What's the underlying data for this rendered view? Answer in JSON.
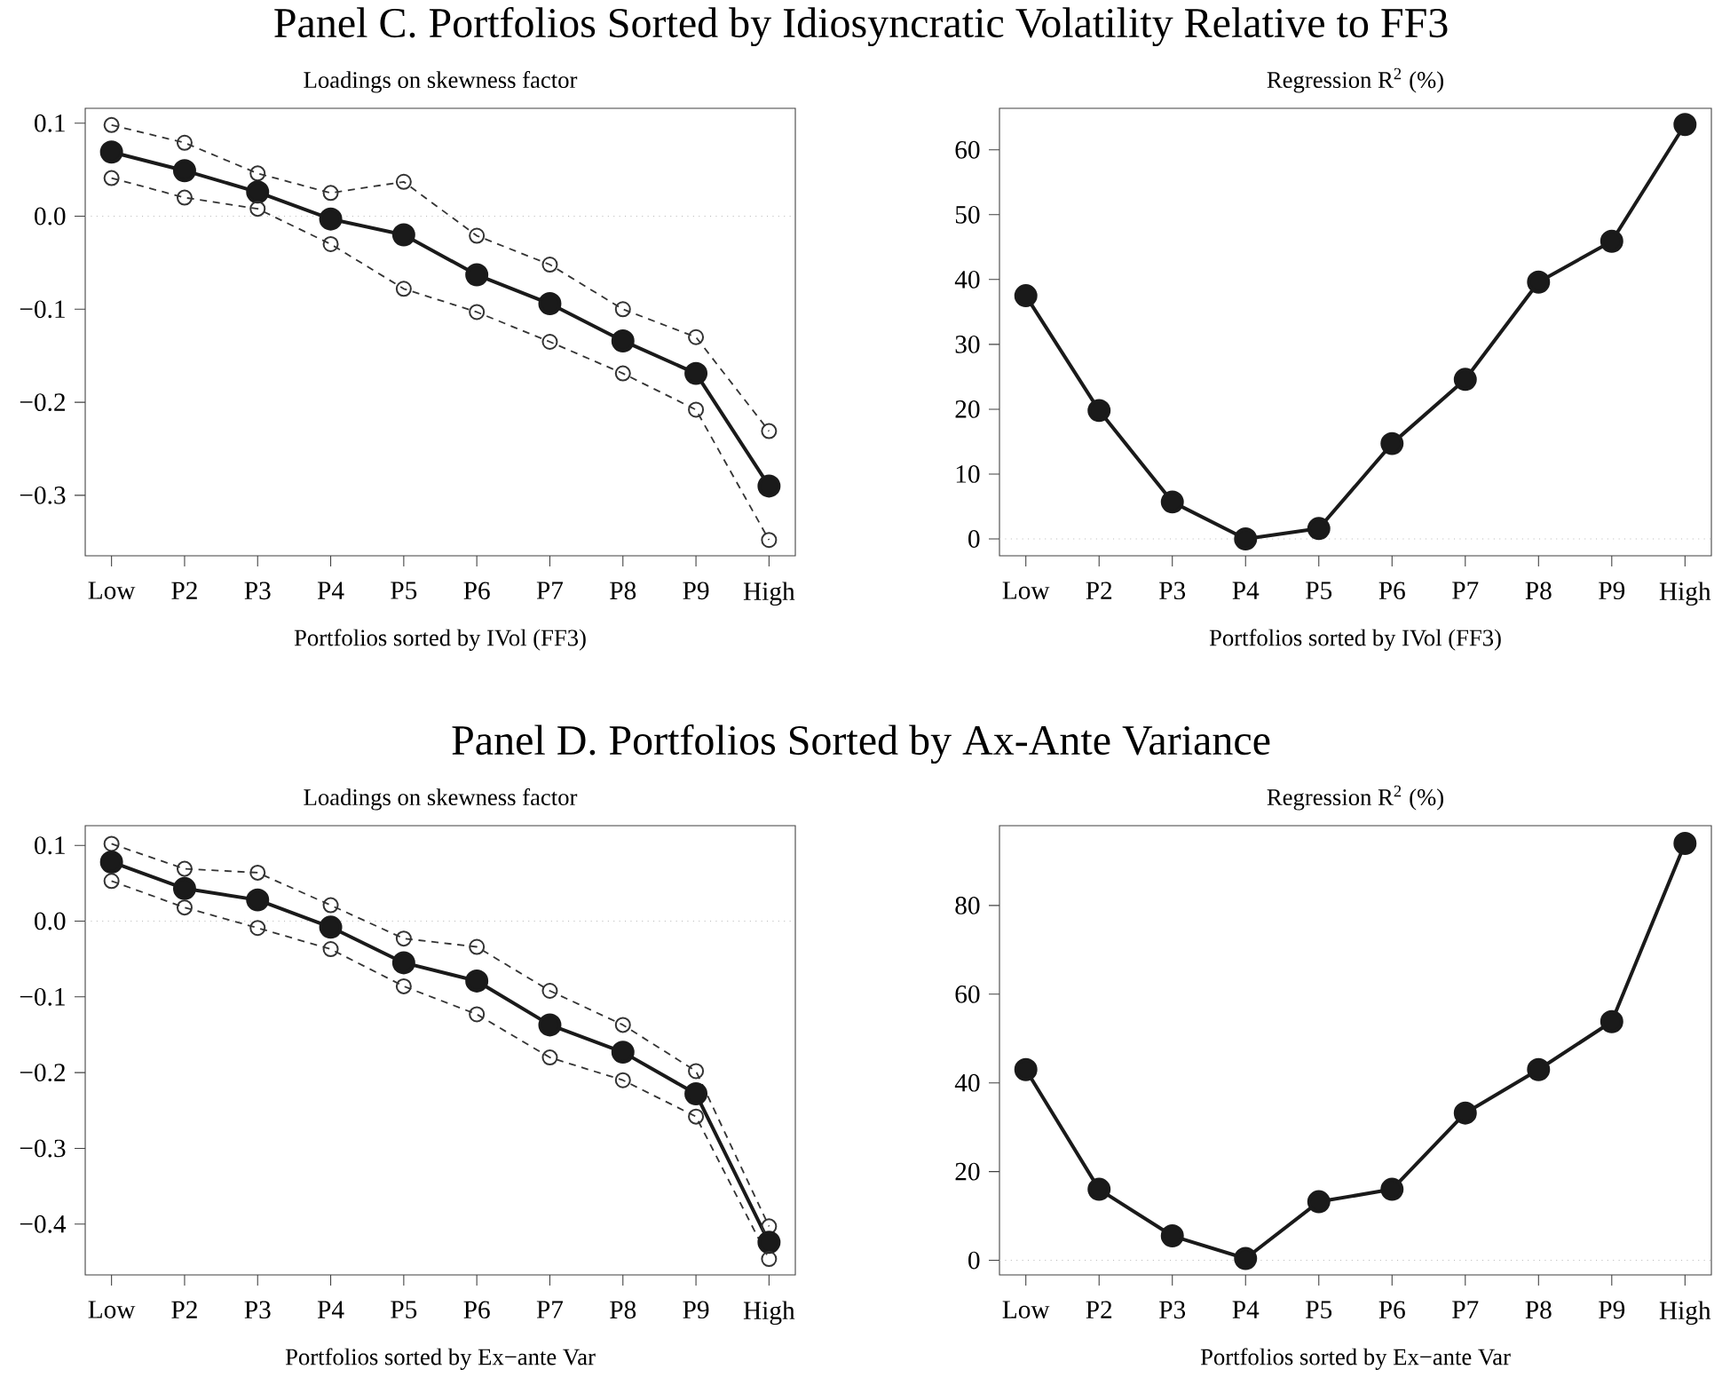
{
  "chart_data": [
    {
      "type": "line",
      "title": "Panel C. Portfolios Sorted by Idiosyncratic Volatility Relative to FF3",
      "subtitle": "Loadings on skewness factor",
      "xlabel": "Portfolios sorted by IVol (FF3)",
      "categories": [
        "Low",
        "P2",
        "P3",
        "P4",
        "P5",
        "P6",
        "P7",
        "P8",
        "P9",
        "High"
      ],
      "series": [
        {
          "color": "#333333",
          "line_style": "dashed",
          "values": [
            0.098,
            0.079,
            0.046,
            0.025,
            0.037,
            -0.021,
            -0.052,
            -0.1,
            -0.13,
            -0.231
          ]
        },
        {
          "color": "#1a1a1a",
          "line_style": "solid",
          "values": [
            0.069,
            0.049,
            0.026,
            -0.003,
            -0.02,
            -0.063,
            -0.094,
            -0.134,
            -0.169,
            -0.29
          ]
        },
        {
          "color": "#333333",
          "line_style": "dashed",
          "values": [
            0.041,
            0.02,
            0.008,
            -0.03,
            -0.078,
            -0.103,
            -0.135,
            -0.169,
            -0.208,
            -0.348
          ]
        }
      ],
      "marker": "circle",
      "ylim": [
        -0.365,
        0.116
      ],
      "yticks": [
        {
          "value": -0.3,
          "label": "−0.3"
        },
        {
          "value": -0.2,
          "label": "−0.2"
        },
        {
          "value": -0.1,
          "label": "−0.1"
        },
        {
          "value": 0,
          "label": "0.0"
        },
        0.1
      ],
      "ref_lines": [
        {
          "axis": "y",
          "value": 0,
          "color": "#bbbbbb",
          "line_style": "dotted"
        }
      ]
    },
    {
      "type": "line",
      "subtitle": "Regression R$^{2}$ (%)",
      "xlabel": "Portfolios sorted by IVol (FF3)",
      "categories": [
        "Low",
        "P2",
        "P3",
        "P4",
        "P5",
        "P6",
        "P7",
        "P8",
        "P9",
        "High"
      ],
      "values": [
        37.5,
        19.8,
        5.7,
        0,
        1.6,
        14.7,
        24.6,
        39.6,
        45.9,
        63.9
      ],
      "color": "#1a1a1a",
      "line_style": "solid",
      "marker": "circle",
      "ylim": [
        -2.6,
        66.4
      ],
      "yticks": [
        0,
        10,
        20,
        30,
        40,
        50,
        60
      ],
      "ref_lines": [
        {
          "axis": "y",
          "value": 0,
          "color": "#bbbbbb",
          "line_style": "dotted"
        }
      ]
    },
    {
      "type": "line",
      "title": "Panel D. Portfolios Sorted by Ax-Ante Variance",
      "subtitle": "Loadings on skewness factor",
      "xlabel": "Portfolios sorted by Ex−ante Var",
      "categories": [
        "Low",
        "P2",
        "P3",
        "P4",
        "P5",
        "P6",
        "P7",
        "P8",
        "P9",
        "High"
      ],
      "series": [
        {
          "color": "#333333",
          "line_style": "dashed",
          "values": [
            0.102,
            0.069,
            0.064,
            0.021,
            -0.023,
            -0.034,
            -0.092,
            -0.137,
            -0.198,
            -0.403
          ]
        },
        {
          "color": "#1a1a1a",
          "line_style": "solid",
          "values": [
            0.078,
            0.043,
            0.028,
            -0.008,
            -0.055,
            -0.079,
            -0.137,
            -0.173,
            -0.228,
            -0.424
          ]
        },
        {
          "color": "#333333",
          "line_style": "dashed",
          "values": [
            0.053,
            0.018,
            -0.009,
            -0.037,
            -0.086,
            -0.123,
            -0.18,
            -0.21,
            -0.258,
            -0.446
          ]
        }
      ],
      "marker": "circle",
      "ylim": [
        -0.467,
        0.126
      ],
      "yticks": [
        {
          "value": -0.4,
          "label": "−0.4"
        },
        {
          "value": -0.3,
          "label": "−0.3"
        },
        {
          "value": -0.2,
          "label": "−0.2"
        },
        {
          "value": -0.1,
          "label": "−0.1"
        },
        {
          "value": 0,
          "label": "0.0"
        },
        0.1
      ],
      "ref_lines": [
        {
          "axis": "y",
          "value": 0,
          "color": "#bbbbbb",
          "line_style": "dotted"
        }
      ]
    },
    {
      "type": "line",
      "subtitle": "Regression R$^{2}$ (%)",
      "xlabel": "Portfolios sorted by Ex−ante Var",
      "categories": [
        "Low",
        "P2",
        "P3",
        "P4",
        "P5",
        "P6",
        "P7",
        "P8",
        "P9",
        "High"
      ],
      "values": [
        43.0,
        16.0,
        5.5,
        0.4,
        13.2,
        16.0,
        33.2,
        43.0,
        53.8,
        94.0
      ],
      "color": "#1a1a1a",
      "line_style": "solid",
      "marker": "circle",
      "ylim": [
        -3.3,
        98.0
      ],
      "yticks": [
        0,
        20,
        40,
        60,
        80
      ],
      "ref_lines": [
        {
          "axis": "y",
          "value": 0,
          "color": "#bbbbbb",
          "line_style": "dotted"
        }
      ]
    }
  ]
}
